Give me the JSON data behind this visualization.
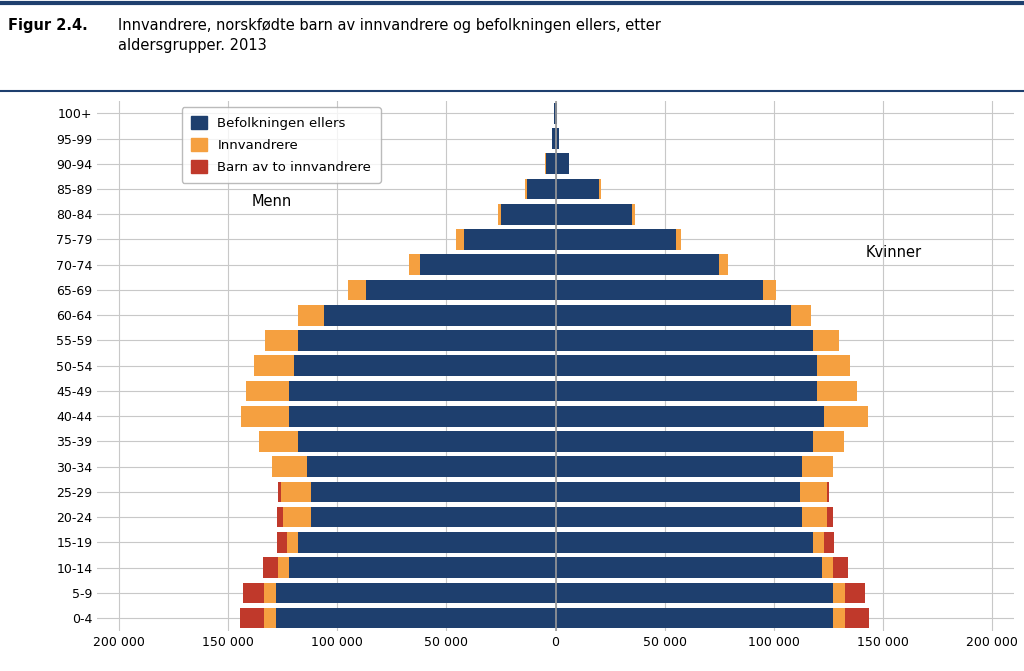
{
  "title_fig": "Figur 2.4.",
  "title_main": "Innvandrere, norskfødte barn av innvandrere og befolkningen ellers, etter\naldersgrupper. 2013",
  "age_groups": [
    "0-4",
    "5-9",
    "10-14",
    "15-19",
    "20-24",
    "25-29",
    "30-34",
    "35-39",
    "40-44",
    "45-49",
    "50-54",
    "55-59",
    "60-64",
    "65-69",
    "70-74",
    "75-79",
    "80-84",
    "85-89",
    "90-94",
    "95-99",
    "100+"
  ],
  "legend_labels": [
    "Befolkningen ellers",
    "Innvandrere",
    "Barn av to innvandrere"
  ],
  "colors": {
    "befolkning": "#1e3f6e",
    "innvandrere": "#f5a040",
    "barn": "#c0392b"
  },
  "label_menn": "Menn",
  "label_kvinner": "Kvinner",
  "xlim": 210000,
  "xticks": [
    -200000,
    -150000,
    -100000,
    -50000,
    0,
    50000,
    100000,
    150000,
    200000
  ],
  "xticklabels": [
    "200 000",
    "150 000",
    "100 000",
    "50 000",
    "0",
    "50 000",
    "100 000",
    "150 000",
    "200 000"
  ],
  "men_befolkning": [
    128000,
    128000,
    122000,
    118000,
    112000,
    112000,
    114000,
    118000,
    122000,
    122000,
    120000,
    118000,
    106000,
    87000,
    62000,
    42000,
    25000,
    13000,
    4500,
    1500,
    500
  ],
  "men_innvandrere": [
    5500,
    5500,
    5000,
    5000,
    13000,
    14000,
    16000,
    18000,
    22000,
    20000,
    18000,
    15000,
    12000,
    8000,
    5000,
    3500,
    1500,
    800,
    400,
    200,
    50
  ],
  "men_barn": [
    11000,
    9500,
    7000,
    4500,
    2500,
    1000,
    0,
    0,
    0,
    0,
    0,
    0,
    0,
    0,
    0,
    0,
    0,
    0,
    0,
    0,
    0
  ],
  "women_befolkning": [
    127000,
    127000,
    122000,
    118000,
    113000,
    112000,
    113000,
    118000,
    123000,
    120000,
    120000,
    118000,
    108000,
    95000,
    75000,
    55000,
    35000,
    20000,
    6000,
    1500,
    500
  ],
  "women_innvandrere": [
    5500,
    5500,
    5000,
    5000,
    11500,
    12500,
    14000,
    14000,
    20000,
    18000,
    15000,
    12000,
    9000,
    6000,
    4000,
    2500,
    1500,
    800,
    400,
    200,
    50
  ],
  "women_barn": [
    11000,
    9500,
    7000,
    4500,
    2500,
    1000,
    0,
    0,
    0,
    0,
    0,
    0,
    0,
    0,
    0,
    0,
    0,
    0,
    0,
    0,
    0
  ],
  "background_color": "#ffffff",
  "grid_color": "#c8c8c8",
  "header_bg": "#eeeeee",
  "header_line_color": "#1e3f6e"
}
